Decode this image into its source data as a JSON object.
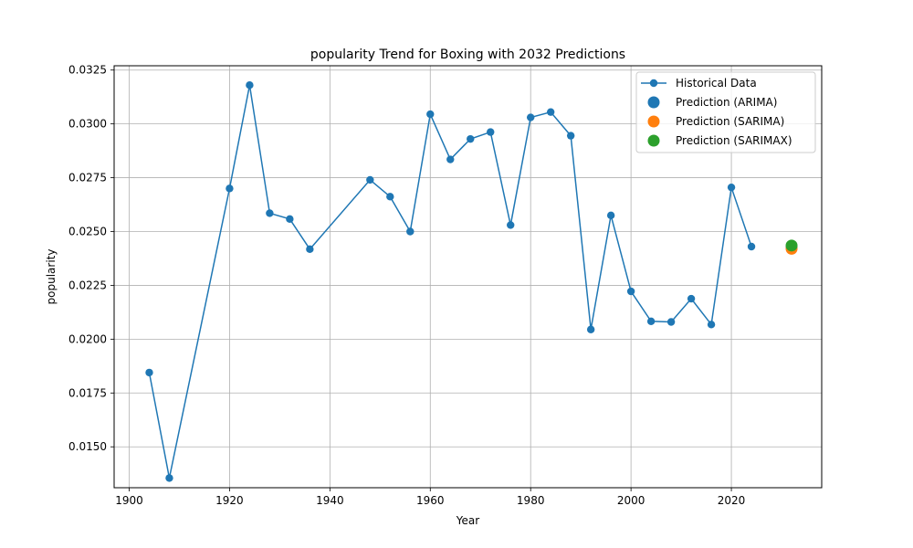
{
  "chart_data": {
    "type": "line",
    "title": "popularity Trend for Boxing with 2032 Predictions",
    "xlabel": "Year",
    "ylabel": "popularity",
    "xlim": [
      1897,
      2038
    ],
    "ylim": [
      0.0131,
      0.0327
    ],
    "xticks": [
      1900,
      1920,
      1940,
      1960,
      1980,
      2000,
      2020
    ],
    "yticks": [
      0.015,
      0.0175,
      0.02,
      0.0225,
      0.025,
      0.0275,
      0.03,
      0.0325
    ],
    "ytick_labels": [
      "0.0150",
      "0.0175",
      "0.0200",
      "0.0225",
      "0.0250",
      "0.0275",
      "0.0300",
      "0.0325"
    ],
    "grid": true,
    "legend_position": "top-right",
    "series": [
      {
        "name": "Historical Data",
        "kind": "line",
        "color": "#1f77b4",
        "x": [
          1904,
          1908,
          1920,
          1924,
          1928,
          1932,
          1936,
          1948,
          1952,
          1956,
          1960,
          1964,
          1968,
          1972,
          1976,
          1980,
          1984,
          1988,
          1992,
          1996,
          2000,
          2004,
          2008,
          2012,
          2016,
          2020,
          2024
        ],
        "y": [
          0.01845,
          0.01355,
          0.027,
          0.0318,
          0.02585,
          0.02558,
          0.02418,
          0.0274,
          0.02662,
          0.025,
          0.03045,
          0.02835,
          0.0293,
          0.02962,
          0.0253,
          0.0303,
          0.03055,
          0.02945,
          0.02045,
          0.02575,
          0.02222,
          0.02083,
          0.0208,
          0.02188,
          0.02068,
          0.02705,
          0.0243
        ]
      },
      {
        "name": "Prediction (ARIMA)",
        "kind": "scatter",
        "color": "#1f77b4",
        "x": [
          2032
        ],
        "y": [
          0.02425
        ]
      },
      {
        "name": "Prediction (SARIMA)",
        "kind": "scatter",
        "color": "#ff7f0e",
        "x": [
          2032
        ],
        "y": [
          0.0242
        ]
      },
      {
        "name": "Prediction (SARIMAX)",
        "kind": "scatter",
        "color": "#2ca02c",
        "x": [
          2032
        ],
        "y": [
          0.02435
        ]
      }
    ]
  }
}
